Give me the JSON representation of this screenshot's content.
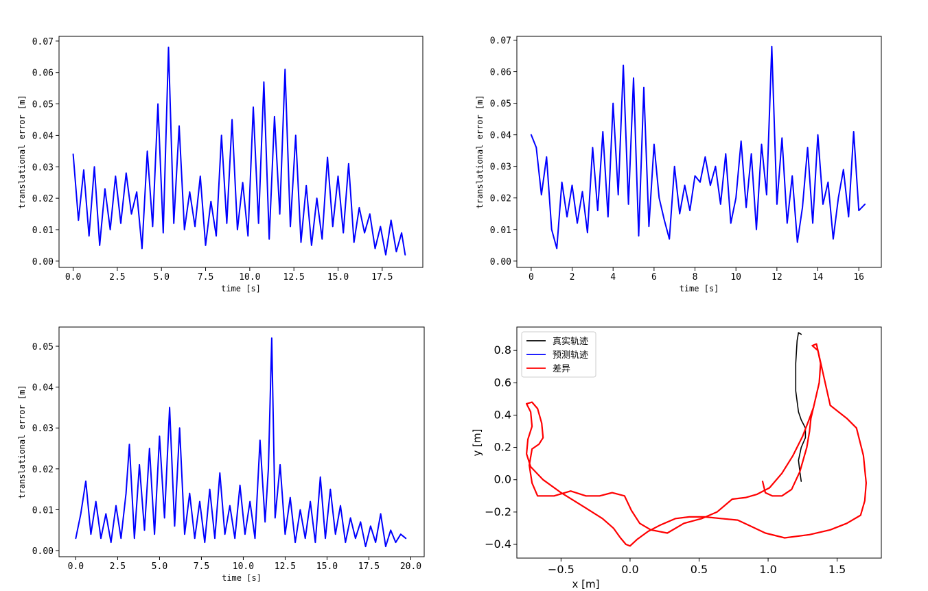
{
  "figure_title": "",
  "colors": {
    "series": "#0000ff",
    "truth": "#000000",
    "predicted": "#0000ff",
    "difference": "#ff0000",
    "axes": "#000000"
  },
  "chart_data": [
    {
      "type": "line",
      "title": "",
      "xlabel": "time [s]",
      "ylabel": "translational error [m]",
      "xlim": [
        -0.8,
        19.8
      ],
      "ylim": [
        -0.002,
        0.0715
      ],
      "xticks": [
        0,
        2.5,
        5,
        7.5,
        10,
        12.5,
        15,
        17.5
      ],
      "xtick_labels": [
        "0.0",
        "2.5",
        "5.0",
        "7.5",
        "10.0",
        "12.5",
        "15.0",
        "17.5"
      ],
      "yticks": [
        0,
        0.01,
        0.02,
        0.03,
        0.04,
        0.05,
        0.06,
        0.07
      ],
      "ytick_labels": [
        "0.00",
        "0.01",
        "0.02",
        "0.03",
        "0.04",
        "0.05",
        "0.06",
        "0.07"
      ],
      "series": [
        {
          "name": "translational error",
          "x": [
            0,
            0.3,
            0.6,
            0.9,
            1.2,
            1.5,
            1.8,
            2.1,
            2.4,
            2.7,
            3.0,
            3.3,
            3.6,
            3.9,
            4.2,
            4.5,
            4.8,
            5.1,
            5.4,
            5.7,
            6.0,
            6.3,
            6.6,
            6.9,
            7.2,
            7.5,
            7.8,
            8.1,
            8.4,
            8.7,
            9.0,
            9.3,
            9.6,
            9.9,
            10.2,
            10.5,
            10.8,
            11.1,
            11.4,
            11.7,
            12.0,
            12.3,
            12.6,
            12.9,
            13.2,
            13.5,
            13.8,
            14.1,
            14.4,
            14.7,
            15.0,
            15.3,
            15.6,
            15.9,
            16.2,
            16.5,
            16.8,
            17.1,
            17.4,
            17.7,
            18.0,
            18.3,
            18.6,
            18.8
          ],
          "y": [
            0.034,
            0.013,
            0.029,
            0.008,
            0.03,
            0.005,
            0.023,
            0.01,
            0.027,
            0.012,
            0.028,
            0.015,
            0.022,
            0.004,
            0.035,
            0.011,
            0.05,
            0.009,
            0.068,
            0.012,
            0.043,
            0.01,
            0.022,
            0.011,
            0.027,
            0.005,
            0.019,
            0.008,
            0.04,
            0.012,
            0.045,
            0.01,
            0.025,
            0.008,
            0.049,
            0.012,
            0.057,
            0.007,
            0.046,
            0.015,
            0.061,
            0.011,
            0.04,
            0.006,
            0.024,
            0.005,
            0.02,
            0.007,
            0.033,
            0.011,
            0.027,
            0.009,
            0.031,
            0.006,
            0.017,
            0.009,
            0.015,
            0.004,
            0.011,
            0.002,
            0.013,
            0.003,
            0.009,
            0.002
          ]
        }
      ]
    },
    {
      "type": "line",
      "title": "",
      "xlabel": "time [s]",
      "ylabel": "translational error [m]",
      "xlim": [
        -0.7,
        17.1
      ],
      "ylim": [
        -0.002,
        0.0712
      ],
      "xticks": [
        0,
        2,
        4,
        6,
        8,
        10,
        12,
        14,
        16
      ],
      "xtick_labels": [
        "0",
        "2",
        "4",
        "6",
        "8",
        "10",
        "12",
        "14",
        "16"
      ],
      "yticks": [
        0,
        0.01,
        0.02,
        0.03,
        0.04,
        0.05,
        0.06,
        0.07
      ],
      "ytick_labels": [
        "0.00",
        "0.01",
        "0.02",
        "0.03",
        "0.04",
        "0.05",
        "0.06",
        "0.07"
      ],
      "series": [
        {
          "name": "translational error",
          "x": [
            0,
            0.25,
            0.5,
            0.75,
            1.0,
            1.25,
            1.5,
            1.75,
            2.0,
            2.25,
            2.5,
            2.75,
            3.0,
            3.25,
            3.5,
            3.75,
            4.0,
            4.25,
            4.5,
            4.75,
            5.0,
            5.25,
            5.5,
            5.75,
            6.0,
            6.25,
            6.5,
            6.75,
            7.0,
            7.25,
            7.5,
            7.75,
            8.0,
            8.25,
            8.5,
            8.75,
            9.0,
            9.25,
            9.5,
            9.75,
            10.0,
            10.25,
            10.5,
            10.75,
            11.0,
            11.25,
            11.5,
            11.75,
            12.0,
            12.25,
            12.5,
            12.75,
            13.0,
            13.25,
            13.5,
            13.75,
            14.0,
            14.25,
            14.5,
            14.75,
            15.0,
            15.25,
            15.5,
            15.75,
            16.0,
            16.3
          ],
          "y": [
            0.04,
            0.036,
            0.021,
            0.033,
            0.01,
            0.004,
            0.025,
            0.014,
            0.024,
            0.012,
            0.022,
            0.009,
            0.036,
            0.016,
            0.041,
            0.014,
            0.05,
            0.021,
            0.062,
            0.018,
            0.058,
            0.008,
            0.055,
            0.011,
            0.037,
            0.02,
            0.013,
            0.007,
            0.03,
            0.015,
            0.024,
            0.016,
            0.027,
            0.025,
            0.033,
            0.024,
            0.03,
            0.018,
            0.034,
            0.012,
            0.02,
            0.038,
            0.017,
            0.034,
            0.01,
            0.037,
            0.021,
            0.068,
            0.018,
            0.039,
            0.012,
            0.027,
            0.006,
            0.017,
            0.036,
            0.012,
            0.04,
            0.018,
            0.025,
            0.007,
            0.02,
            0.029,
            0.014,
            0.041,
            0.016,
            0.018
          ]
        }
      ]
    },
    {
      "type": "line",
      "title": "",
      "xlabel": "time [s]",
      "ylabel": "translational error [m]",
      "xlim": [
        -1.0,
        20.8
      ],
      "ylim": [
        -0.0015,
        0.0547
      ],
      "xticks": [
        0,
        2.5,
        5,
        7.5,
        10,
        12.5,
        15,
        17.5,
        20
      ],
      "xtick_labels": [
        "0.0",
        "2.5",
        "5.0",
        "7.5",
        "10.0",
        "12.5",
        "15.0",
        "17.5",
        "20.0"
      ],
      "yticks": [
        0,
        0.01,
        0.02,
        0.03,
        0.04,
        0.05
      ],
      "ytick_labels": [
        "0.00",
        "0.01",
        "0.02",
        "0.03",
        "0.04",
        "0.05"
      ],
      "series": [
        {
          "name": "translational error",
          "x": [
            0,
            0.3,
            0.6,
            0.9,
            1.2,
            1.5,
            1.8,
            2.1,
            2.4,
            2.7,
            3.0,
            3.2,
            3.5,
            3.8,
            4.1,
            4.4,
            4.7,
            5.0,
            5.3,
            5.6,
            5.9,
            6.2,
            6.5,
            6.8,
            7.1,
            7.4,
            7.7,
            8.0,
            8.3,
            8.6,
            8.9,
            9.2,
            9.5,
            9.8,
            10.1,
            10.4,
            10.7,
            11.0,
            11.3,
            11.5,
            11.7,
            11.9,
            12.2,
            12.5,
            12.8,
            13.1,
            13.4,
            13.7,
            14.0,
            14.3,
            14.6,
            14.9,
            15.2,
            15.5,
            15.8,
            16.1,
            16.4,
            16.7,
            17.0,
            17.3,
            17.6,
            17.9,
            18.2,
            18.5,
            18.8,
            19.1,
            19.4,
            19.7
          ],
          "y": [
            0.003,
            0.009,
            0.017,
            0.004,
            0.012,
            0.003,
            0.009,
            0.002,
            0.011,
            0.003,
            0.014,
            0.026,
            0.003,
            0.021,
            0.005,
            0.025,
            0.004,
            0.028,
            0.008,
            0.035,
            0.006,
            0.03,
            0.004,
            0.014,
            0.003,
            0.012,
            0.002,
            0.015,
            0.003,
            0.019,
            0.004,
            0.011,
            0.003,
            0.016,
            0.004,
            0.012,
            0.003,
            0.027,
            0.007,
            0.02,
            0.052,
            0.008,
            0.021,
            0.004,
            0.013,
            0.002,
            0.01,
            0.003,
            0.012,
            0.002,
            0.018,
            0.003,
            0.015,
            0.004,
            0.011,
            0.002,
            0.008,
            0.003,
            0.007,
            0.001,
            0.006,
            0.002,
            0.009,
            0.001,
            0.005,
            0.002,
            0.004,
            0.003
          ]
        }
      ]
    },
    {
      "type": "line",
      "title": "",
      "xlabel": "x [m]",
      "ylabel": "y [m]",
      "xlim": [
        -0.82,
        1.82
      ],
      "ylim": [
        -0.485,
        0.945
      ],
      "xticks": [
        -0.5,
        0.0,
        0.5,
        1.0,
        1.5
      ],
      "xtick_labels": [
        "−0.5",
        "0.0",
        "0.5",
        "1.0",
        "1.5"
      ],
      "yticks": [
        -0.4,
        -0.2,
        0.0,
        0.2,
        0.4,
        0.6,
        0.8
      ],
      "ytick_labels": [
        "−0.4",
        "−0.2",
        "0.0",
        "0.2",
        "0.4",
        "0.6",
        "0.8"
      ],
      "legend": {
        "position": "top-left",
        "entries": [
          "真实轨迹",
          "预测轨迹",
          "差异"
        ]
      },
      "series": [
        {
          "name": "真实轨迹",
          "x": [
            1.24,
            1.23,
            1.22,
            1.24,
            1.27,
            1.27,
            1.24,
            1.22,
            1.2,
            1.2,
            1.21,
            1.22,
            1.24
          ],
          "y": [
            -0.01,
            0.05,
            0.12,
            0.2,
            0.26,
            0.32,
            0.37,
            0.42,
            0.55,
            0.72,
            0.86,
            0.91,
            0.9
          ]
        },
        {
          "name": "预测轨迹",
          "x": [
            0.96,
            0.98,
            1.03,
            1.1,
            1.17,
            1.23,
            1.28,
            1.3,
            1.31,
            1.34,
            1.37,
            1.38,
            1.36,
            1.32,
            1.35,
            1.45,
            1.57,
            1.64,
            1.69,
            1.71,
            1.7,
            1.67,
            1.57,
            1.45,
            1.3,
            1.12,
            0.98,
            0.88,
            0.78,
            0.66,
            0.54,
            0.43,
            0.33,
            0.22,
            0.13,
            0.05,
            0.0,
            -0.03,
            -0.07,
            -0.12,
            -0.2,
            -0.33,
            -0.5,
            -0.63,
            -0.72,
            -0.75,
            -0.74,
            -0.71,
            -0.72,
            -0.75,
            -0.71,
            -0.67,
            -0.64,
            -0.63,
            -0.66,
            -0.71,
            -0.73,
            -0.71,
            -0.67,
            -0.55,
            -0.43,
            -0.32,
            -0.22,
            -0.13,
            -0.04,
            0.01,
            0.07,
            0.15,
            0.27,
            0.39,
            0.52,
            0.63,
            0.74,
            0.84,
            0.92,
            1.01,
            1.1,
            1.18,
            1.25,
            1.3,
            1.33
          ],
          "y": [
            -0.01,
            -0.08,
            -0.1,
            -0.1,
            -0.06,
            0.05,
            0.2,
            0.3,
            0.38,
            0.49,
            0.6,
            0.72,
            0.8,
            0.83,
            0.84,
            0.46,
            0.38,
            0.32,
            0.15,
            -0.02,
            -0.13,
            -0.22,
            -0.27,
            -0.31,
            -0.34,
            -0.36,
            -0.33,
            -0.29,
            -0.25,
            -0.24,
            -0.23,
            -0.23,
            -0.24,
            -0.28,
            -0.32,
            -0.37,
            -0.41,
            -0.4,
            -0.36,
            -0.3,
            -0.24,
            -0.17,
            -0.08,
            0.0,
            0.08,
            0.16,
            0.25,
            0.33,
            0.42,
            0.47,
            0.48,
            0.44,
            0.35,
            0.26,
            0.22,
            0.19,
            0.09,
            -0.02,
            -0.1,
            -0.1,
            -0.07,
            -0.1,
            -0.1,
            -0.08,
            -0.1,
            -0.19,
            -0.27,
            -0.31,
            -0.33,
            -0.27,
            -0.24,
            -0.2,
            -0.12,
            -0.11,
            -0.09,
            -0.05,
            0.04,
            0.15,
            0.27,
            0.38,
            0.45
          ]
        },
        {
          "name": "差异",
          "x": [
            0.96,
            0.98,
            1.03,
            1.1,
            1.17,
            1.23,
            1.28,
            1.3,
            1.31,
            1.34,
            1.37,
            1.38,
            1.36,
            1.32,
            1.35,
            1.45,
            1.57,
            1.64,
            1.69,
            1.71,
            1.7,
            1.67,
            1.57,
            1.45,
            1.3,
            1.12,
            0.98,
            0.88,
            0.78,
            0.66,
            0.54,
            0.43,
            0.33,
            0.22,
            0.13,
            0.05,
            0.0,
            -0.03,
            -0.07,
            -0.12,
            -0.2,
            -0.33,
            -0.5,
            -0.63,
            -0.72,
            -0.75,
            -0.74,
            -0.71,
            -0.72,
            -0.75,
            -0.71,
            -0.67,
            -0.64,
            -0.63,
            -0.66,
            -0.71,
            -0.73,
            -0.71,
            -0.67,
            -0.55,
            -0.43,
            -0.32,
            -0.22,
            -0.13,
            -0.04,
            0.01,
            0.07,
            0.15,
            0.27,
            0.39,
            0.52,
            0.63,
            0.74,
            0.84,
            0.92,
            1.01,
            1.1,
            1.18,
            1.25,
            1.3,
            1.33
          ],
          "y": [
            -0.01,
            -0.08,
            -0.1,
            -0.1,
            -0.06,
            0.05,
            0.2,
            0.3,
            0.38,
            0.49,
            0.6,
            0.72,
            0.8,
            0.83,
            0.84,
            0.46,
            0.38,
            0.32,
            0.15,
            -0.02,
            -0.13,
            -0.22,
            -0.27,
            -0.31,
            -0.34,
            -0.36,
            -0.33,
            -0.29,
            -0.25,
            -0.24,
            -0.23,
            -0.23,
            -0.24,
            -0.28,
            -0.32,
            -0.37,
            -0.41,
            -0.4,
            -0.36,
            -0.3,
            -0.24,
            -0.17,
            -0.08,
            0.0,
            0.08,
            0.16,
            0.25,
            0.33,
            0.42,
            0.47,
            0.48,
            0.44,
            0.35,
            0.26,
            0.22,
            0.19,
            0.09,
            -0.02,
            -0.1,
            -0.1,
            -0.07,
            -0.1,
            -0.1,
            -0.08,
            -0.1,
            -0.19,
            -0.27,
            -0.31,
            -0.33,
            -0.27,
            -0.24,
            -0.2,
            -0.12,
            -0.11,
            -0.09,
            -0.05,
            0.04,
            0.15,
            0.27,
            0.38,
            0.45
          ]
        }
      ]
    }
  ]
}
